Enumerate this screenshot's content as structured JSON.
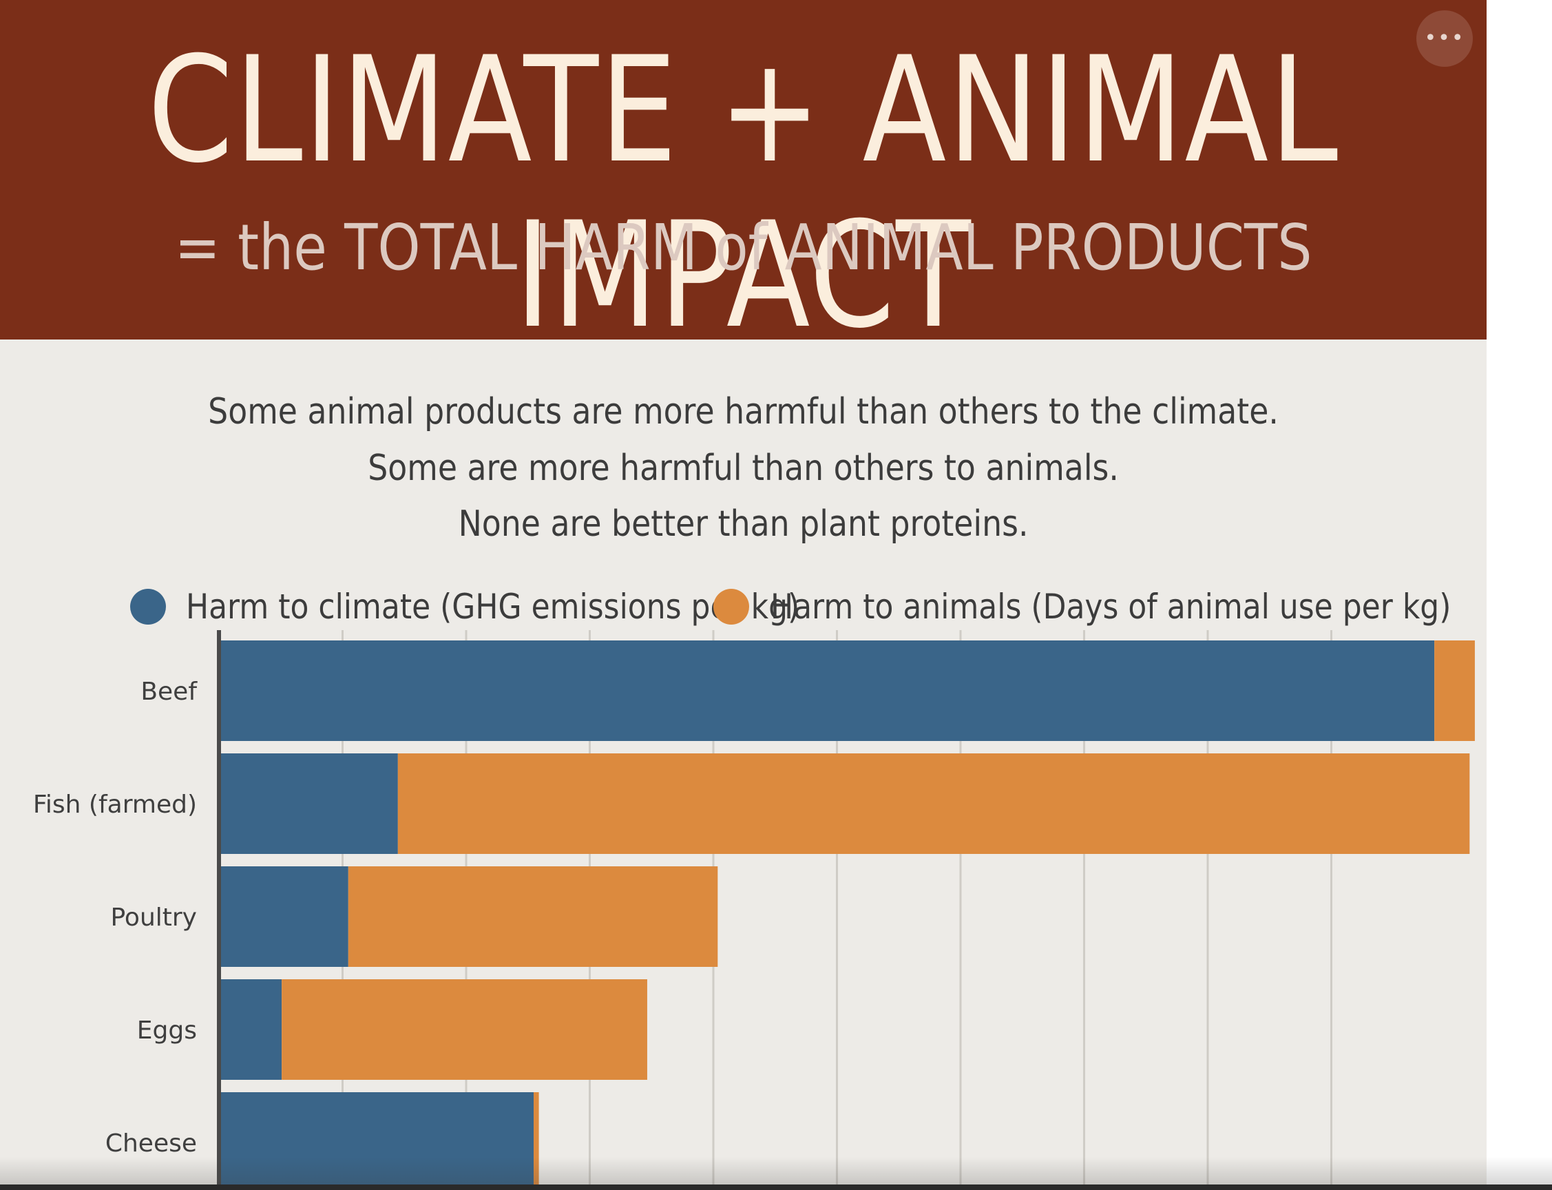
{
  "header": {
    "title": "CLIMATE + ANIMAL IMPACT",
    "subtitle": "= the TOTAL HARM of ANIMAL PRODUCTS",
    "more_button_label": "•••"
  },
  "intro": {
    "line1": "Some animal products are more harmful than others to the climate.",
    "line2": "Some are more harmful than others to animals.",
    "line3": "None are better than plant proteins."
  },
  "colors": {
    "header_bg": "#7b2e18",
    "panel_bg": "#edebe7",
    "climate": "#3a6589",
    "animals": "#dc8a3e",
    "grid": "#cfccc6",
    "axis": "#4a4a4a"
  },
  "chart_data": {
    "type": "bar",
    "orientation": "horizontal",
    "stacked": true,
    "title": "CLIMATE + ANIMAL IMPACT",
    "xlabel": "",
    "ylabel": "",
    "xlim": [
      0,
      97
    ],
    "grid": true,
    "legend_position": "top",
    "categories": [
      "Beef",
      "Fish (farmed)",
      "Poultry",
      "Eggs",
      "Cheese"
    ],
    "series": [
      {
        "name": "Harm to climate (GHG emissions per kg)",
        "color": "#3a6589",
        "values": [
          93.0,
          13.6,
          9.8,
          4.7,
          24.0
        ]
      },
      {
        "name": "Harm to animals (Days of animal use per kg)",
        "color": "#dc8a3e",
        "values": [
          3.1,
          82.1,
          28.3,
          28.0,
          0.4
        ]
      }
    ]
  }
}
